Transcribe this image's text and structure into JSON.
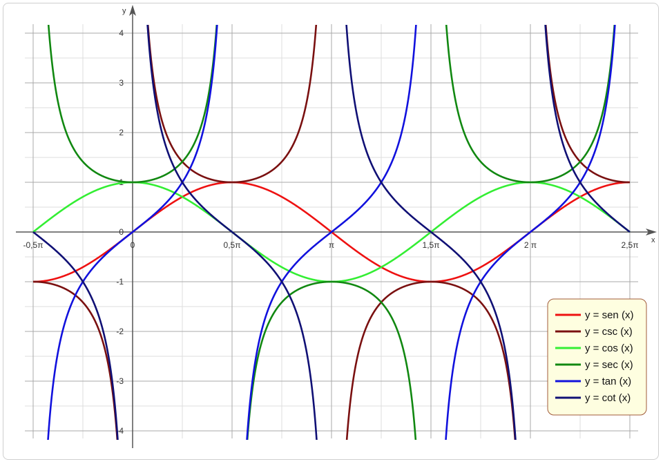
{
  "chart_data": {
    "type": "line",
    "xlabel": "x",
    "ylabel": "y",
    "xlim": [
      -1.5708,
      7.854
    ],
    "ylim": [
      -4.25,
      4.25
    ],
    "x_tick_values": [
      -1.5708,
      0,
      1.5708,
      3.1416,
      4.7124,
      6.2832,
      7.854
    ],
    "x_tick_labels": [
      "-0,5π",
      "0",
      "0,5π",
      "π",
      "1,5π",
      "2 π",
      "2,5π"
    ],
    "y_tick_values": [
      -4,
      -3,
      -2,
      -1,
      0,
      1,
      2,
      3,
      4
    ],
    "y_tick_labels": [
      "-4",
      "-3",
      "-2",
      "-1",
      "0",
      "1",
      "2",
      "3",
      "4"
    ],
    "grid": true,
    "legend_position": "bottom-right",
    "series": [
      {
        "name": "y = sen (x)",
        "function": "sin",
        "color": "#ee1111"
      },
      {
        "name": "y = csc (x)",
        "function": "csc",
        "color": "#7a1010"
      },
      {
        "name": "y = cos (x)",
        "function": "cos",
        "color": "#33ee33"
      },
      {
        "name": "y = sec (x)",
        "function": "sec",
        "color": "#118811"
      },
      {
        "name": "y = tan (x)",
        "function": "tan",
        "color": "#1111dd"
      },
      {
        "name": "y = cot (x)",
        "function": "cot",
        "color": "#101075"
      }
    ]
  },
  "colors": {
    "legend_background": "#fefee0",
    "legend_border": "#a05a3a",
    "axis": "#555555",
    "major_grid": "#a9a9a9",
    "minor_grid": "#dddddd"
  }
}
